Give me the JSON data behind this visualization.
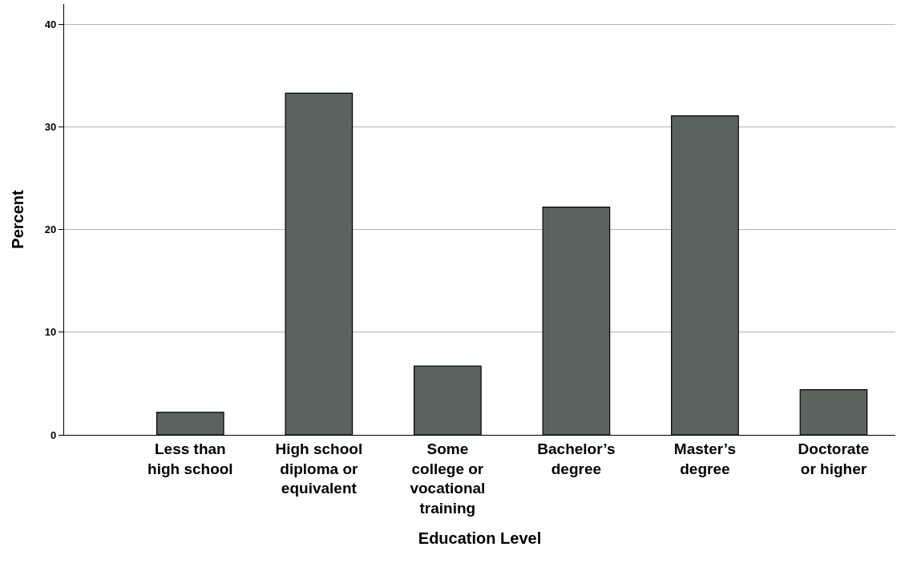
{
  "chart_data": {
    "type": "bar",
    "xlabel": "Education Level",
    "ylabel": "Percent",
    "categories": [
      "Less than high school",
      "High school diploma or equivalent",
      "Some college or vocational training",
      "Bachelor’s degree",
      "Master’s degree",
      "Doctorate or higher"
    ],
    "values": [
      2.2,
      33.3,
      6.7,
      22.2,
      31.1,
      4.4
    ],
    "color": "#5a635d",
    "ylim": [
      0,
      42
    ],
    "yticks": [
      0,
      10,
      20,
      30,
      40
    ],
    "grid": "y"
  }
}
